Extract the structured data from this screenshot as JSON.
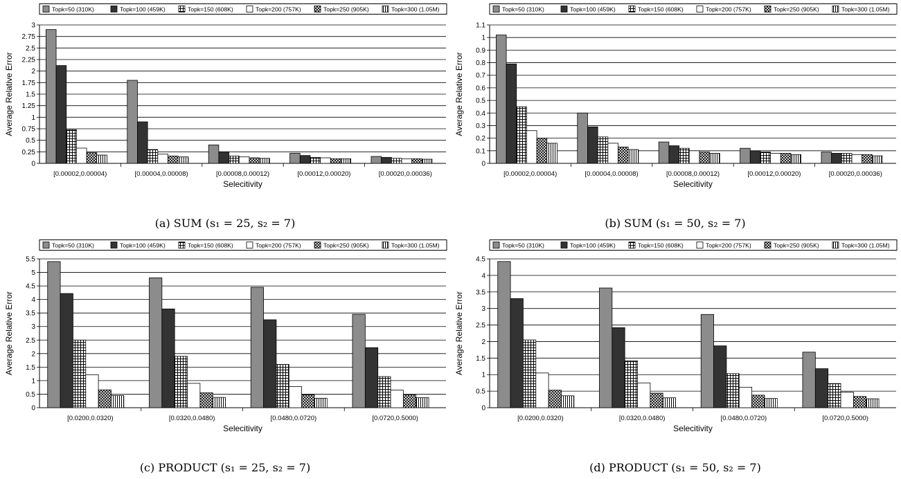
{
  "series_names": [
    "Topk=50 (310K)",
    "Topk=100 (459K)",
    "Topk=150 (608K)",
    "Topk=200 (757K)",
    "Topk=250 (905K)",
    "Topk=300 (1.05M)"
  ],
  "series_fills": [
    "#8c8c8c",
    "#333333",
    "hatch-grid",
    "#ffffff",
    "hatch-cross",
    "hatch-vertical"
  ],
  "chart_data": [
    {
      "type": "bar",
      "caption": "(a) SUM (s₁ = 25, s₂ = 7)",
      "xlabel": "Selecitivity",
      "ylabel": "Average Relative Error",
      "ylim": [
        0,
        3
      ],
      "yticks": [
        "0",
        "0.25",
        "0.5",
        "0.75",
        "1",
        "1.25",
        "1.5",
        "1.75",
        "2",
        "2.25",
        "2.5",
        "2.75",
        "3"
      ],
      "grid": true,
      "legend": "top",
      "categories": [
        "[0.00002,0.00004)",
        "[0.00004,0.00008)",
        "[0.00008,0.00012)",
        "[0.00012,0.00020)",
        "[0.00020,0.00036)"
      ],
      "series": [
        {
          "name": "Topk=50 (310K)",
          "values": [
            2.9,
            1.8,
            0.4,
            0.22,
            0.15
          ]
        },
        {
          "name": "Topk=100 (459K)",
          "values": [
            2.12,
            0.9,
            0.25,
            0.17,
            0.13
          ]
        },
        {
          "name": "Topk=150 (608K)",
          "values": [
            0.73,
            0.3,
            0.16,
            0.13,
            0.11
          ]
        },
        {
          "name": "Topk=200 (757K)",
          "values": [
            0.33,
            0.2,
            0.14,
            0.12,
            0.1
          ]
        },
        {
          "name": "Topk=250 (905K)",
          "values": [
            0.23,
            0.16,
            0.12,
            0.1,
            0.1
          ]
        },
        {
          "name": "Topk=300 (1.05M)",
          "values": [
            0.18,
            0.14,
            0.11,
            0.1,
            0.09
          ]
        }
      ]
    },
    {
      "type": "bar",
      "caption": "(b) SUM (s₁ = 50, s₂ = 7)",
      "xlabel": "Selecitivity",
      "ylabel": "Average Relative Error",
      "ylim": [
        0,
        1.1
      ],
      "yticks": [
        "0",
        "0.1",
        "0.2",
        "0.3",
        "0.4",
        "0.5",
        "0.6",
        "0.7",
        "0.8",
        "0.9",
        "1",
        "1.1"
      ],
      "grid": true,
      "legend": "top",
      "categories": [
        "[0.00002,0.00004)",
        "[0.00004,0.00008)",
        "[0.00008,0.00012)",
        "[0.00012,0.00020)",
        "[0.00020,0.00036)"
      ],
      "series": [
        {
          "name": "Topk=50 (310K)",
          "values": [
            1.02,
            0.4,
            0.17,
            0.12,
            0.09
          ]
        },
        {
          "name": "Topk=100 (459K)",
          "values": [
            0.79,
            0.29,
            0.14,
            0.1,
            0.08
          ]
        },
        {
          "name": "Topk=150 (608K)",
          "values": [
            0.45,
            0.21,
            0.12,
            0.09,
            0.08
          ]
        },
        {
          "name": "Topk=200 (757K)",
          "values": [
            0.26,
            0.16,
            0.1,
            0.08,
            0.07
          ]
        },
        {
          "name": "Topk=250 (905K)",
          "values": [
            0.2,
            0.13,
            0.09,
            0.08,
            0.07
          ]
        },
        {
          "name": "Topk=300 (1.05M)",
          "values": [
            0.16,
            0.11,
            0.08,
            0.07,
            0.06
          ]
        }
      ]
    },
    {
      "type": "bar",
      "caption": "(c) PRODUCT (s₁ = 25, s₂ = 7)",
      "xlabel": "Selecitivity",
      "ylabel": "Average Relative Error",
      "ylim": [
        0,
        5.5
      ],
      "yticks": [
        "0",
        "0.5",
        "1",
        "1.5",
        "2",
        "2.5",
        "3",
        "3.5",
        "4",
        "4.5",
        "5",
        "5.5"
      ],
      "grid": true,
      "legend": "top",
      "categories": [
        "[0.0200,0.0320)",
        "[0.0320,0.0480)",
        "[0.0480,0.0720)",
        "[0.0720,0.5000)"
      ],
      "series": [
        {
          "name": "Topk=50 (310K)",
          "values": [
            5.4,
            4.8,
            4.45,
            3.45
          ]
        },
        {
          "name": "Topk=100 (459K)",
          "values": [
            4.22,
            3.65,
            3.25,
            2.22
          ]
        },
        {
          "name": "Topk=150 (608K)",
          "values": [
            2.5,
            1.9,
            1.6,
            1.15
          ]
        },
        {
          "name": "Topk=200 (757K)",
          "values": [
            1.22,
            0.9,
            0.78,
            0.65
          ]
        },
        {
          "name": "Topk=250 (905K)",
          "values": [
            0.66,
            0.55,
            0.48,
            0.47
          ]
        },
        {
          "name": "Topk=300 (1.05M)",
          "values": [
            0.45,
            0.38,
            0.35,
            0.37
          ]
        }
      ]
    },
    {
      "type": "bar",
      "caption": "(d) PRODUCT (s₁ = 50, s₂ = 7)",
      "xlabel": "Selecitivity",
      "ylabel": "Average Relative Error",
      "ylim": [
        0,
        4.5
      ],
      "yticks": [
        "0",
        "0.5",
        "1",
        "1.5",
        "2",
        "2.5",
        "3",
        "3.5",
        "4",
        "4.5"
      ],
      "grid": true,
      "legend": "top",
      "categories": [
        "[0.0200,0.0320)",
        "[0.0320,0.0480)",
        "[0.0480,0.0720)",
        "[0.0720,0.5000)"
      ],
      "series": [
        {
          "name": "Topk=50 (310K)",
          "values": [
            4.42,
            3.62,
            2.82,
            1.68
          ]
        },
        {
          "name": "Topk=100 (459K)",
          "values": [
            3.3,
            2.42,
            1.87,
            1.18
          ]
        },
        {
          "name": "Topk=150 (608K)",
          "values": [
            2.05,
            1.42,
            1.03,
            0.73
          ]
        },
        {
          "name": "Topk=200 (757K)",
          "values": [
            1.05,
            0.75,
            0.62,
            0.47
          ]
        },
        {
          "name": "Topk=250 (905K)",
          "values": [
            0.53,
            0.44,
            0.38,
            0.34
          ]
        },
        {
          "name": "Topk=300 (1.05M)",
          "values": [
            0.36,
            0.3,
            0.28,
            0.27
          ]
        }
      ]
    }
  ]
}
